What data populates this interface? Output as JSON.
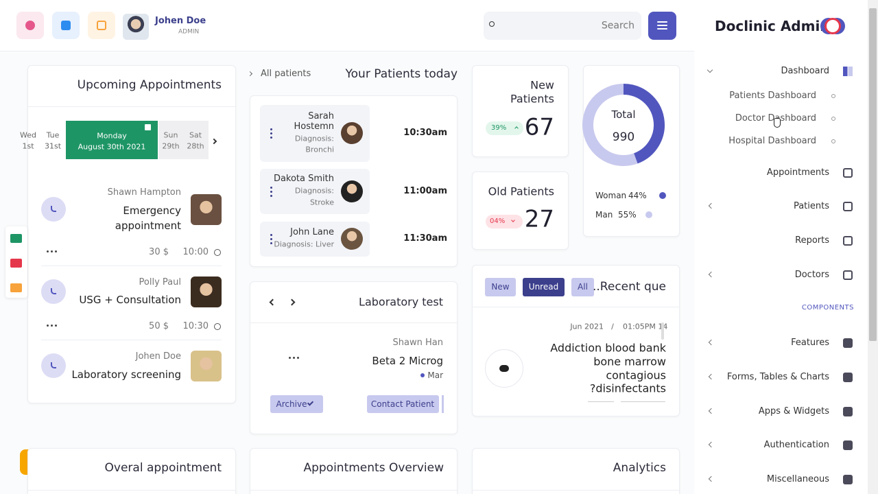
{
  "header": {
    "user_name": "Johen Doe",
    "user_role": "ADMIN",
    "search_placeholder": "Search"
  },
  "sidebar": {
    "brand": "Doclinic Admin",
    "dashboard": "Dashboard",
    "submenu": [
      "Patients Dashboard",
      "Doctor Dashboard",
      "Hospital Dashboard"
    ],
    "menu": [
      "Appointments",
      "Patients",
      "Reports",
      "Doctors"
    ],
    "section": "COMPONENTS",
    "components": [
      "Features",
      "Forms, Tables & Charts",
      "Apps & Widgets",
      "Authentication",
      "Miscellaneous"
    ]
  },
  "appointments": {
    "title": "Upcoming Appointments",
    "dates_before": [
      {
        "day": "Wed",
        "date": "1st"
      },
      {
        "day": "Tue",
        "date": "31st"
      }
    ],
    "active": {
      "day": "Monday",
      "date": "August 30th 2021"
    },
    "dates_after": [
      {
        "day": "Sun",
        "date": "29th"
      },
      {
        "day": "Sat",
        "date": "28th"
      }
    ],
    "items": [
      {
        "name": "Shawn Hampton",
        "type": [
          "Emergency",
          "appointment"
        ],
        "price": "30 $",
        "time": "10:00"
      },
      {
        "name": "Polly Paul",
        "type": [
          "USG + Consultation"
        ],
        "price": "50 $",
        "time": "10:30"
      },
      {
        "name": "Johen Doe",
        "type": [
          "Laboratory screening"
        ]
      }
    ]
  },
  "patients_today": {
    "breadcrumb": "All patients",
    "title": "Your Patients today",
    "items": [
      {
        "name": [
          "Sarah",
          "Hostemn"
        ],
        "diagnosis": [
          "Diagnosis:",
          "Bronchi"
        ],
        "time": "10:30am"
      },
      {
        "name": [
          "Dakota Smith"
        ],
        "diagnosis": [
          "Diagnosis:",
          "Stroke"
        ],
        "time": "11:00am"
      },
      {
        "name": [
          "John Lane"
        ],
        "diagnosis": [
          "Diagnosis: Liver"
        ],
        "time": "11:30am"
      }
    ]
  },
  "lab": {
    "title": "Laboratory test",
    "patient": "Shawn Han",
    "test": "Beta 2 Microg",
    "status": "Mar",
    "archive": "Archive",
    "contact": "Contact Patient"
  },
  "new_patients": {
    "title": [
      "New",
      "Patients"
    ],
    "change": "39%",
    "count": 67
  },
  "old_patients": {
    "title": "Old Patients",
    "change": "04%",
    "count": 27
  },
  "gender": {
    "total_label": "Total",
    "total": 990,
    "segments": [
      {
        "name": "Woman",
        "value": 44,
        "value_label": "44%",
        "color": "#5156be"
      },
      {
        "name": "Man",
        "value": 55,
        "value_label": "55%",
        "color": "#c8c9ee"
      }
    ]
  },
  "recent": {
    "tabs": [
      "New",
      "Unread",
      "All"
    ],
    "title": "..Recent que",
    "date": "Jun 2021",
    "separator": "/",
    "time": "01:05PM 14",
    "text": [
      "Addiction blood bank",
      "bone marrow",
      "contagious",
      "?disinfectants"
    ]
  },
  "bottom_titles": [
    "Overal appointment",
    "Appointments Overview",
    "Analytics"
  ]
}
